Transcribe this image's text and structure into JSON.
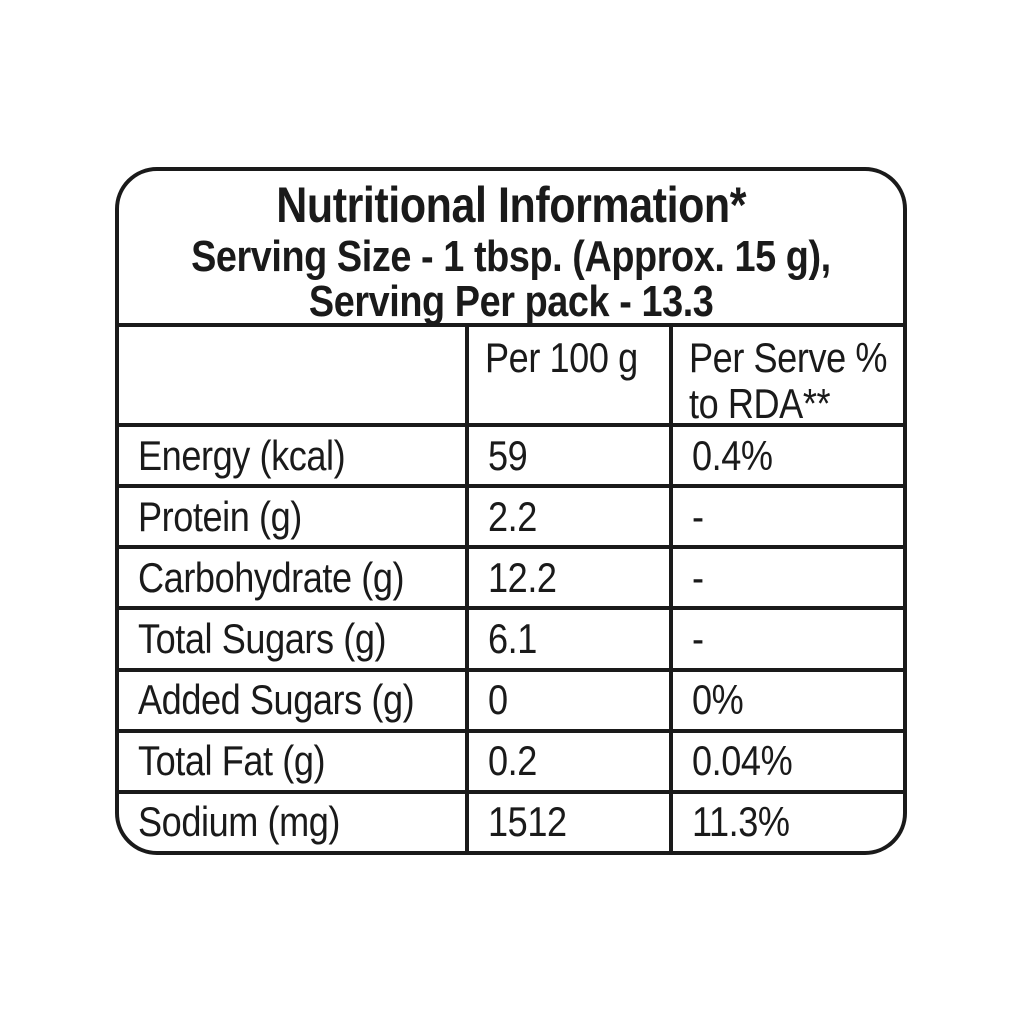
{
  "label": {
    "title": "Nutritional Information*",
    "serving_size_line": "Serving Size - 1 tbsp. (Approx. 15 g),",
    "servings_per_pack_line": "Serving Per pack - 13.3"
  },
  "table": {
    "column_headers": {
      "nutrient": "",
      "per_100g": "Per 100 g",
      "per_serve_rda_line1": "Per Serve %",
      "per_serve_rda_line2": "to RDA**"
    },
    "rows": [
      {
        "label": "Energy (kcal)",
        "per100": "59",
        "rda": "0.4%"
      },
      {
        "label": "Protein (g)",
        "per100": "2.2",
        "rda": "-"
      },
      {
        "label": "Carbohydrate (g)",
        "per100": "12.2",
        "rda": "-"
      },
      {
        "label": "Total Sugars (g)",
        "per100": "6.1",
        "rda": "-"
      },
      {
        "label": "Added Sugars (g)",
        "per100": "0",
        "rda": "0%"
      },
      {
        "label": "Total Fat (g)",
        "per100": "0.2",
        "rda": "0.04%"
      },
      {
        "label": "Sodium (mg)",
        "per100": "1512",
        "rda": "11.3%"
      }
    ]
  },
  "colors": {
    "border": "#1a1a1a",
    "text": "#1a1a1a",
    "background": "#ffffff"
  }
}
